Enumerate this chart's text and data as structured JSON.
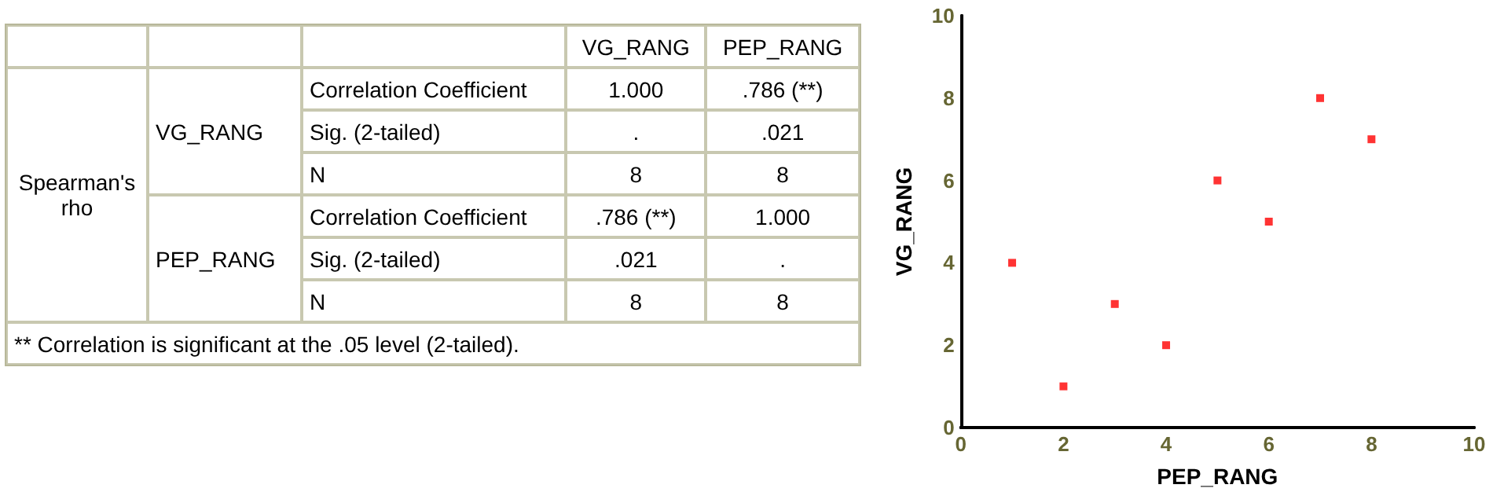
{
  "chart_data": [
    {
      "type": "other",
      "annotations": [
        "VG_RANG",
        "PEP_RANG",
        "Spearman's rho",
        "VG_RANG",
        "PEP_RANG",
        "Correlation Coefficient",
        "1.000",
        ".786 (**)",
        "Sig. (2-tailed)",
        ".",
        ".021",
        "N",
        "8",
        "8",
        "Correlation Coefficient",
        ".786 (**)",
        "1.000",
        "Sig. (2-tailed)",
        ".021",
        ".",
        "N",
        "8",
        "8",
        "** Correlation is significant at the .05 level (2-tailed)."
      ]
    },
    {
      "type": "scatter",
      "xlabel": "PEP_RANG",
      "ylabel": "VG_RANG",
      "x": [
        1,
        2,
        3,
        4,
        5,
        6,
        7,
        8
      ],
      "values": [
        4,
        1,
        3,
        2,
        6,
        5,
        8,
        7
      ],
      "color": "#ff0000",
      "marker": "square",
      "xlim": [
        0,
        10
      ],
      "xticks": [
        0,
        2,
        4,
        6,
        8,
        10
      ],
      "ylim": [
        0,
        10
      ],
      "yticks": [
        0,
        2,
        4,
        6,
        8,
        10
      ],
      "grid": false
    }
  ]
}
